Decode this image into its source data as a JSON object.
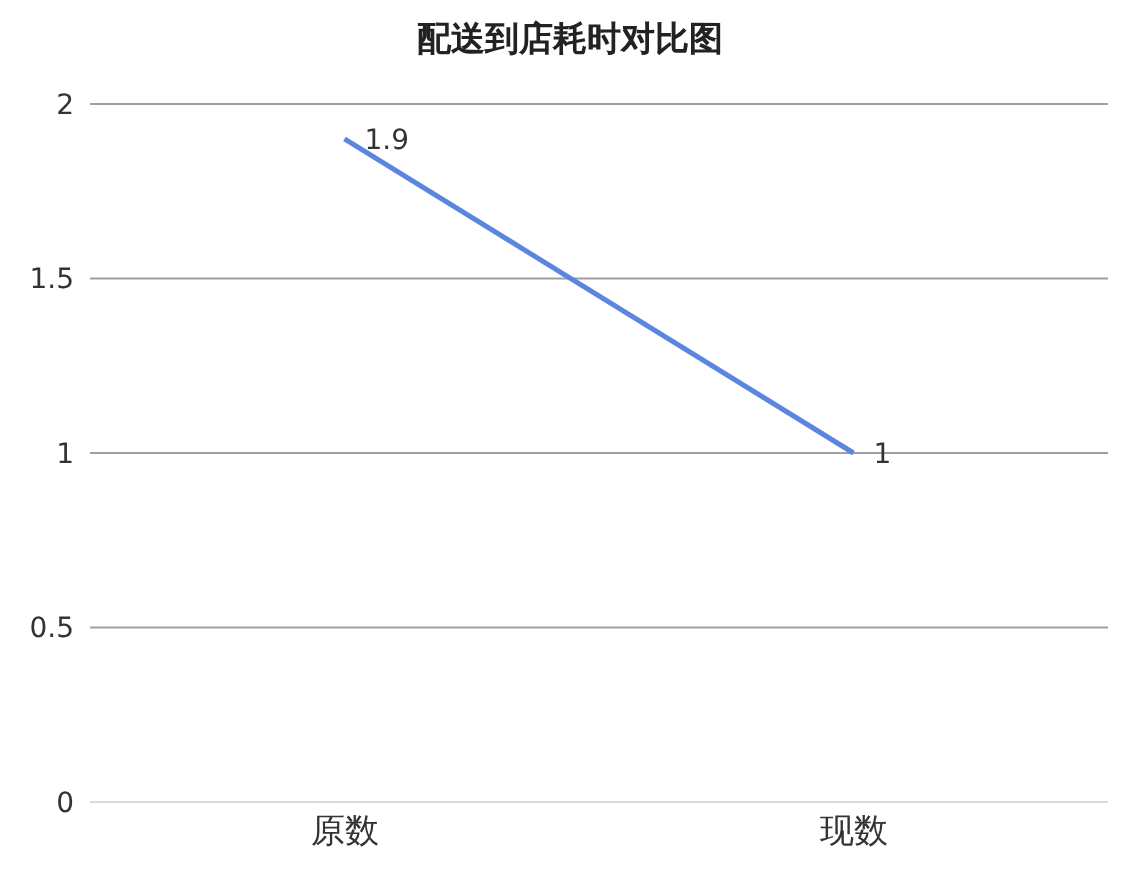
{
  "chart_data": {
    "type": "line",
    "title": "配送到店耗时对比图",
    "categories": [
      "原数",
      "现数"
    ],
    "series": [
      {
        "color": "#5b86e0",
        "values": [
          1.9,
          1
        ]
      }
    ],
    "ylim": [
      0,
      2
    ],
    "yticks": [
      0,
      0.5,
      1,
      1.5,
      2
    ],
    "grid": "y",
    "marker": "none",
    "line_style": "solid",
    "data_labels": true
  }
}
